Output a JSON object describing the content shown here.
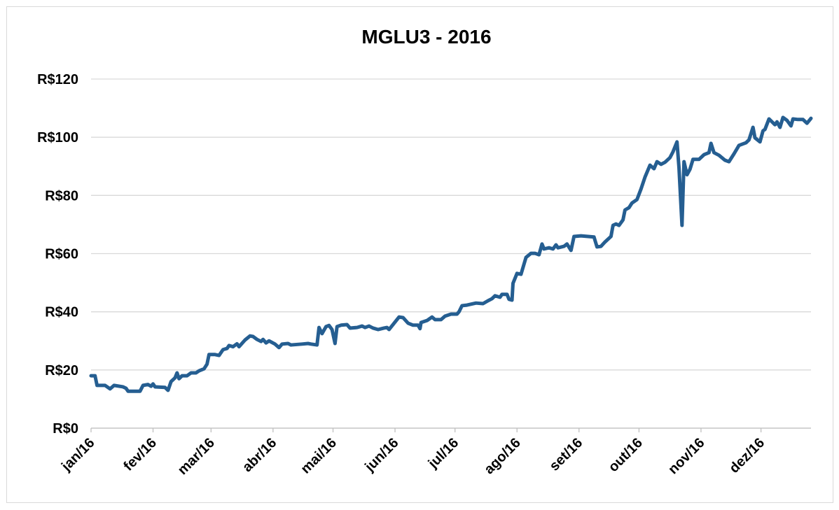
{
  "chart_data": {
    "type": "line",
    "title": "MGLU3 - 2016",
    "x": [
      0,
      2,
      3,
      7,
      9.5,
      11.5,
      16,
      17.5,
      18.5,
      24.5,
      26,
      28.5,
      30,
      31,
      32,
      37,
      38.5,
      40,
      42,
      43,
      44,
      45.5,
      48,
      50,
      52.5,
      54,
      56.5,
      58,
      59,
      62,
      64,
      66,
      68,
      69,
      71,
      73,
      74,
      77,
      79.5,
      81,
      83,
      85,
      86,
      87.5,
      89,
      92,
      94,
      95.5,
      98.5,
      100,
      105.5,
      108.5,
      110,
      113,
      114,
      115.5,
      117.5,
      119,
      120.5,
      122,
      123,
      125,
      128,
      129.5,
      133,
      135.5,
      137,
      139,
      141,
      143.5,
      146.5,
      148,
      149,
      151,
      154,
      156,
      158.5,
      161,
      163.5,
      164.5,
      165,
      168,
      170.5,
      172,
      175,
      177,
      180,
      183,
      184,
      185.5,
      188,
      192.5,
      196,
      198.5,
      200.5,
      202,
      204.5,
      205.5,
      208,
      209,
      210.5,
      211,
      213,
      215,
      217.5,
      220,
      222,
      224,
      225.5,
      226.5,
      229,
      231,
      232.5,
      233.5,
      236.5,
      238,
      240,
      241.5,
      245,
      248.5,
      251.5,
      253,
      255,
      257,
      260,
      261,
      262.5,
      264,
      266,
      267,
      269,
      270.5,
      273,
      275,
      277,
      279.5,
      281.5,
      283,
      285,
      287,
      289.5,
      291,
      293,
      294,
      295.5,
      296.5,
      298,
      299.5,
      301,
      304,
      306.5,
      309,
      310,
      311.5,
      314,
      317,
      319,
      321.5,
      324,
      325.5,
      327.5,
      329,
      331,
      332,
      334.5,
      336,
      337,
      339,
      340.5,
      342,
      343,
      344.5,
      346,
      348,
      350,
      351,
      353.5,
      356,
      358,
      360
    ],
    "values": [
      18,
      18,
      14.7,
      14.7,
      13.5,
      14.7,
      14.2,
      13.7,
      12.7,
      12.7,
      14.7,
      15,
      14.4,
      15.2,
      14.2,
      14,
      13,
      16,
      17.3,
      19,
      17,
      18,
      18,
      19,
      19,
      19.7,
      20.4,
      22,
      25.3,
      25.3,
      25,
      27,
      27.4,
      28.4,
      28,
      29,
      28,
      30.3,
      31.7,
      31.5,
      30.5,
      29.8,
      30.5,
      29.3,
      30,
      28.9,
      27.7,
      28.9,
      29.1,
      28.6,
      28.9,
      29.1,
      28.9,
      28.6,
      34.6,
      32.5,
      34.9,
      35.3,
      33.9,
      29.1,
      34.9,
      35.4,
      35.6,
      34.4,
      34.6,
      35.1,
      34.6,
      35.1,
      34.4,
      33.9,
      34.4,
      34.6,
      33.9,
      35.6,
      38.2,
      38,
      36.1,
      35.4,
      35.4,
      34.2,
      36.3,
      37,
      38.2,
      37.3,
      37.3,
      38.5,
      39.2,
      39.2,
      40,
      42.1,
      42.3,
      43,
      42.8,
      43.8,
      44.5,
      45.5,
      45,
      46,
      46,
      44.3,
      44,
      49.8,
      53.2,
      52.9,
      58.7,
      60.1,
      60.1,
      59.6,
      63.3,
      61.6,
      62,
      61.6,
      63,
      62,
      62.5,
      63.3,
      61.1,
      65.9,
      66.1,
      65.9,
      65.7,
      62.3,
      62.5,
      64,
      65.9,
      69.7,
      70.2,
      69.7,
      71.6,
      75,
      75.8,
      77.4,
      78.6,
      82.2,
      86.3,
      90.4,
      89.2,
      91.6,
      90.7,
      91.4,
      93,
      95,
      98.4,
      89.5,
      69.7,
      91.6,
      87.1,
      89,
      92.4,
      92.4,
      94,
      94.7,
      97.9,
      94.7,
      93.8,
      92.1,
      91.6,
      94.3,
      97.2,
      97.6,
      98.1,
      99.1,
      103.4,
      99.8,
      98.4,
      102.2,
      102.7,
      106.3,
      105.3,
      104.3,
      105.3,
      103.4,
      106.8,
      105.8,
      103.9,
      106.3,
      106.1,
      106.1,
      104.8,
      106.5
    ],
    "color": "#255e91",
    "xlim": [
      0,
      360
    ],
    "xticks": [
      {
        "value": 0,
        "label": "jan/16"
      },
      {
        "value": 31,
        "label": "fev/16"
      },
      {
        "value": 60,
        "label": "mar/16"
      },
      {
        "value": 91,
        "label": "abr/16"
      },
      {
        "value": 121,
        "label": "mai/16"
      },
      {
        "value": 152,
        "label": "jun/16"
      },
      {
        "value": 182,
        "label": "jul/16"
      },
      {
        "value": 213,
        "label": "ago/16"
      },
      {
        "value": 244,
        "label": "set/16"
      },
      {
        "value": 274,
        "label": "out/16"
      },
      {
        "value": 305,
        "label": "nov/16"
      },
      {
        "value": 335,
        "label": "dez/16"
      }
    ],
    "ylim": [
      0,
      120
    ],
    "yticks": [
      {
        "value": 0,
        "label": "R$0"
      },
      {
        "value": 20,
        "label": "R$20"
      },
      {
        "value": 40,
        "label": "R$40"
      },
      {
        "value": 60,
        "label": "R$60"
      },
      {
        "value": 80,
        "label": "R$80"
      },
      {
        "value": 100,
        "label": "R$100"
      },
      {
        "value": 120,
        "label": "R$120"
      }
    ],
    "grid": true
  }
}
